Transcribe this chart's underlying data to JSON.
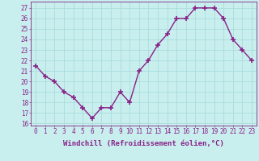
{
  "x": [
    0,
    1,
    2,
    3,
    4,
    5,
    6,
    7,
    8,
    9,
    10,
    11,
    12,
    13,
    14,
    15,
    16,
    17,
    18,
    19,
    20,
    21,
    22,
    23
  ],
  "y": [
    21.5,
    20.5,
    20.0,
    19.0,
    18.5,
    17.5,
    16.5,
    17.5,
    17.5,
    19.0,
    18.0,
    21.0,
    22.0,
    23.5,
    24.5,
    26.0,
    26.0,
    27.0,
    27.0,
    27.0,
    26.0,
    24.0,
    23.0,
    22.0
  ],
  "line_color": "#882288",
  "marker": "+",
  "xlabel": "Windchill (Refroidissement éolien,°C)",
  "ylim": [
    15.8,
    27.6
  ],
  "yticks": [
    16,
    17,
    18,
    19,
    20,
    21,
    22,
    23,
    24,
    25,
    26,
    27
  ],
  "xticks": [
    0,
    1,
    2,
    3,
    4,
    5,
    6,
    7,
    8,
    9,
    10,
    11,
    12,
    13,
    14,
    15,
    16,
    17,
    18,
    19,
    20,
    21,
    22,
    23
  ],
  "bg_color": "#c8eeee",
  "grid_color": "#aadddd",
  "tick_color": "#882288",
  "label_color": "#882288",
  "font_size": 5.5,
  "xlabel_fontsize": 6.5,
  "linewidth": 1.0,
  "markersize": 5,
  "markerwidth": 1.2
}
